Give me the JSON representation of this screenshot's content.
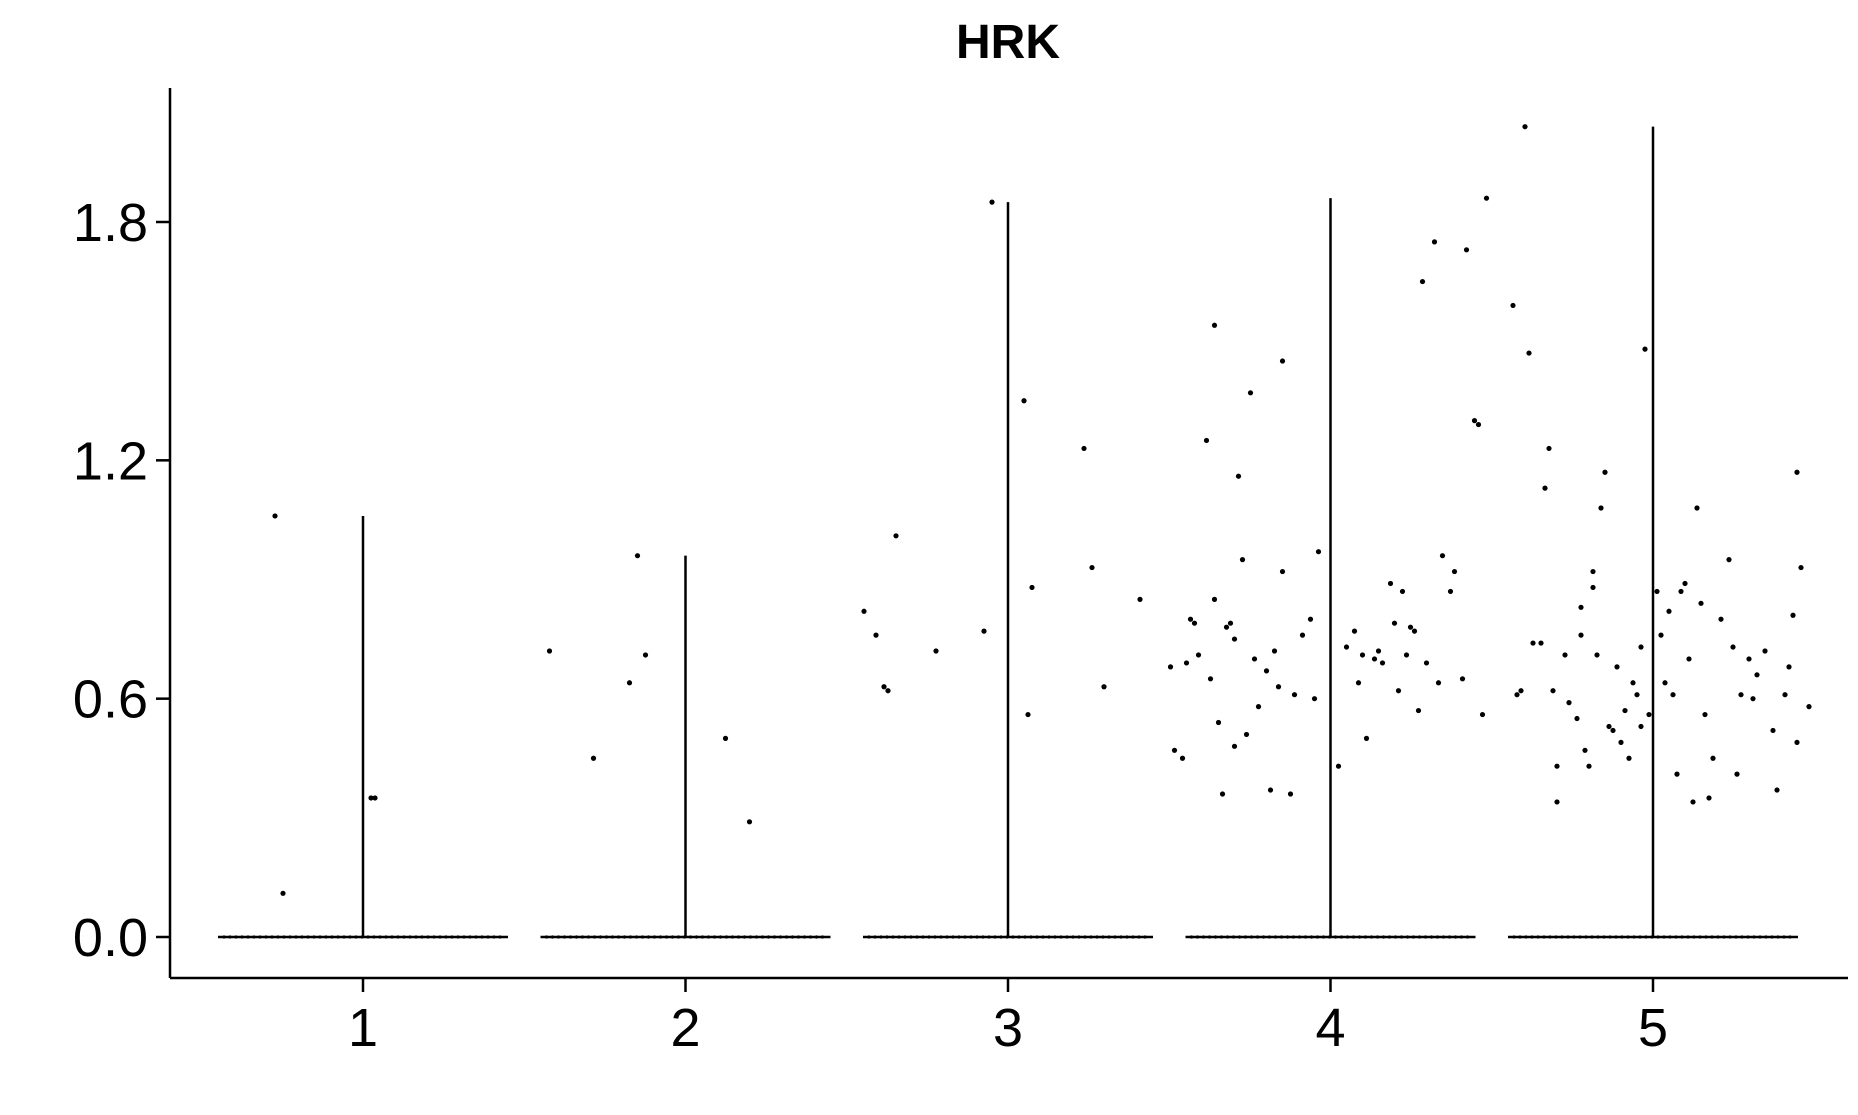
{
  "chart_data": {
    "type": "violin",
    "title": "HRK",
    "xlabel": "",
    "ylabel": "",
    "categories": [
      "1",
      "2",
      "3",
      "4",
      "5"
    ],
    "y_ticks": [
      "0.0",
      "0.6",
      "1.2",
      "1.8"
    ],
    "y_tick_values": [
      0,
      0.6,
      1.2,
      1.8
    ],
    "ylim": [
      -0.1,
      2.15
    ],
    "grid": false,
    "legend": "none",
    "colors": {
      "violin_line": "#000000",
      "point": "#000000"
    },
    "series": [
      {
        "category": "1",
        "max": 1.06,
        "points": [
          [
            -0.22,
            1.06
          ],
          [
            -0.2,
            0.11
          ],
          [
            0.02,
            0.35
          ],
          [
            0.03,
            0.35
          ]
        ]
      },
      {
        "category": "2",
        "max": 0.96,
        "points": [
          [
            -0.34,
            0.72
          ],
          [
            -0.23,
            0.45
          ],
          [
            -0.14,
            0.64
          ],
          [
            -0.12,
            0.96
          ],
          [
            -0.1,
            0.71
          ],
          [
            0.1,
            0.5
          ],
          [
            0.16,
            0.29
          ]
        ]
      },
      {
        "category": "3",
        "max": 1.85,
        "points": [
          [
            -0.36,
            0.82
          ],
          [
            -0.33,
            0.76
          ],
          [
            -0.31,
            0.63
          ],
          [
            -0.3,
            0.62
          ],
          [
            -0.28,
            1.01
          ],
          [
            -0.18,
            0.72
          ],
          [
            -0.06,
            0.77
          ],
          [
            -0.04,
            1.85
          ],
          [
            0.04,
            1.35
          ],
          [
            0.05,
            0.56
          ],
          [
            0.06,
            0.88
          ],
          [
            0.19,
            1.23
          ],
          [
            0.21,
            0.93
          ],
          [
            0.24,
            0.63
          ],
          [
            0.33,
            0.85
          ]
        ]
      },
      {
        "category": "4",
        "max": 1.86,
        "points": [
          [
            -0.4,
            0.68
          ],
          [
            -0.39,
            0.47
          ],
          [
            -0.37,
            0.45
          ],
          [
            -0.36,
            0.69
          ],
          [
            -0.35,
            0.8
          ],
          [
            -0.34,
            0.79
          ],
          [
            -0.33,
            0.71
          ],
          [
            -0.31,
            1.25
          ],
          [
            -0.3,
            0.65
          ],
          [
            -0.29,
            0.85
          ],
          [
            -0.29,
            1.54
          ],
          [
            -0.28,
            0.54
          ],
          [
            -0.27,
            0.36
          ],
          [
            -0.26,
            0.78
          ],
          [
            -0.25,
            0.79
          ],
          [
            -0.24,
            0.75
          ],
          [
            -0.24,
            0.48
          ],
          [
            -0.23,
            1.16
          ],
          [
            -0.22,
            0.95
          ],
          [
            -0.21,
            0.51
          ],
          [
            -0.2,
            1.37
          ],
          [
            -0.19,
            0.7
          ],
          [
            -0.18,
            0.58
          ],
          [
            -0.16,
            0.67
          ],
          [
            -0.15,
            0.37
          ],
          [
            -0.14,
            0.72
          ],
          [
            -0.13,
            0.63
          ],
          [
            -0.12,
            0.92
          ],
          [
            -0.12,
            1.45
          ],
          [
            -0.1,
            0.36
          ],
          [
            -0.09,
            0.61
          ],
          [
            -0.07,
            0.76
          ],
          [
            -0.05,
            0.8
          ],
          [
            -0.04,
            0.6
          ],
          [
            -0.03,
            0.97
          ],
          [
            0.02,
            0.43
          ],
          [
            0.04,
            0.73
          ],
          [
            0.06,
            0.77
          ],
          [
            0.07,
            0.64
          ],
          [
            0.08,
            0.71
          ],
          [
            0.09,
            0.5
          ],
          [
            0.11,
            0.7
          ],
          [
            0.12,
            0.72
          ],
          [
            0.13,
            0.69
          ],
          [
            0.15,
            0.89
          ],
          [
            0.16,
            0.79
          ],
          [
            0.17,
            0.62
          ],
          [
            0.18,
            0.87
          ],
          [
            0.19,
            0.71
          ],
          [
            0.2,
            0.78
          ],
          [
            0.21,
            0.77
          ],
          [
            0.22,
            0.57
          ],
          [
            0.23,
            1.65
          ],
          [
            0.24,
            0.69
          ],
          [
            0.26,
            1.75
          ],
          [
            0.27,
            0.64
          ],
          [
            0.28,
            0.96
          ],
          [
            0.3,
            0.87
          ],
          [
            0.31,
            0.92
          ],
          [
            0.33,
            0.65
          ],
          [
            0.34,
            1.73
          ],
          [
            0.36,
            1.3
          ],
          [
            0.37,
            1.29
          ],
          [
            0.38,
            0.56
          ],
          [
            0.39,
            1.86
          ]
        ]
      },
      {
        "category": "5",
        "max": 2.04,
        "points": [
          [
            -0.35,
            1.59
          ],
          [
            -0.34,
            0.61
          ],
          [
            -0.33,
            0.62
          ],
          [
            -0.32,
            2.04
          ],
          [
            -0.31,
            1.47
          ],
          [
            -0.3,
            0.74
          ],
          [
            -0.28,
            0.74
          ],
          [
            -0.27,
            1.13
          ],
          [
            -0.26,
            1.23
          ],
          [
            -0.25,
            0.62
          ],
          [
            -0.24,
            0.43
          ],
          [
            -0.24,
            0.34
          ],
          [
            -0.22,
            0.71
          ],
          [
            -0.21,
            0.59
          ],
          [
            -0.19,
            0.55
          ],
          [
            -0.18,
            0.76
          ],
          [
            -0.18,
            0.83
          ],
          [
            -0.17,
            0.47
          ],
          [
            -0.16,
            0.43
          ],
          [
            -0.15,
            0.88
          ],
          [
            -0.15,
            0.92
          ],
          [
            -0.14,
            0.71
          ],
          [
            -0.13,
            1.08
          ],
          [
            -0.12,
            1.17
          ],
          [
            -0.11,
            0.53
          ],
          [
            -0.1,
            0.52
          ],
          [
            -0.09,
            0.68
          ],
          [
            -0.08,
            0.49
          ],
          [
            -0.07,
            0.57
          ],
          [
            -0.06,
            0.45
          ],
          [
            -0.05,
            0.64
          ],
          [
            -0.04,
            0.61
          ],
          [
            -0.03,
            0.73
          ],
          [
            -0.03,
            0.53
          ],
          [
            -0.02,
            1.48
          ],
          [
            -0.01,
            0.56
          ],
          [
            0.01,
            0.87
          ],
          [
            0.02,
            0.76
          ],
          [
            0.03,
            0.64
          ],
          [
            0.04,
            0.82
          ],
          [
            0.05,
            0.61
          ],
          [
            0.06,
            0.41
          ],
          [
            0.07,
            0.87
          ],
          [
            0.08,
            0.89
          ],
          [
            0.09,
            0.7
          ],
          [
            0.1,
            0.34
          ],
          [
            0.11,
            1.08
          ],
          [
            0.12,
            0.84
          ],
          [
            0.13,
            0.56
          ],
          [
            0.14,
            0.35
          ],
          [
            0.15,
            0.45
          ],
          [
            0.17,
            0.8
          ],
          [
            0.19,
            0.95
          ],
          [
            0.2,
            0.73
          ],
          [
            0.21,
            0.41
          ],
          [
            0.22,
            0.61
          ],
          [
            0.24,
            0.7
          ],
          [
            0.25,
            0.6
          ],
          [
            0.26,
            0.66
          ],
          [
            0.28,
            0.72
          ],
          [
            0.3,
            0.52
          ],
          [
            0.31,
            0.37
          ],
          [
            0.33,
            0.61
          ],
          [
            0.34,
            0.68
          ],
          [
            0.35,
            0.81
          ],
          [
            0.36,
            1.17
          ],
          [
            0.37,
            0.93
          ],
          [
            0.36,
            0.49
          ],
          [
            0.39,
            0.58
          ]
        ]
      }
    ]
  }
}
